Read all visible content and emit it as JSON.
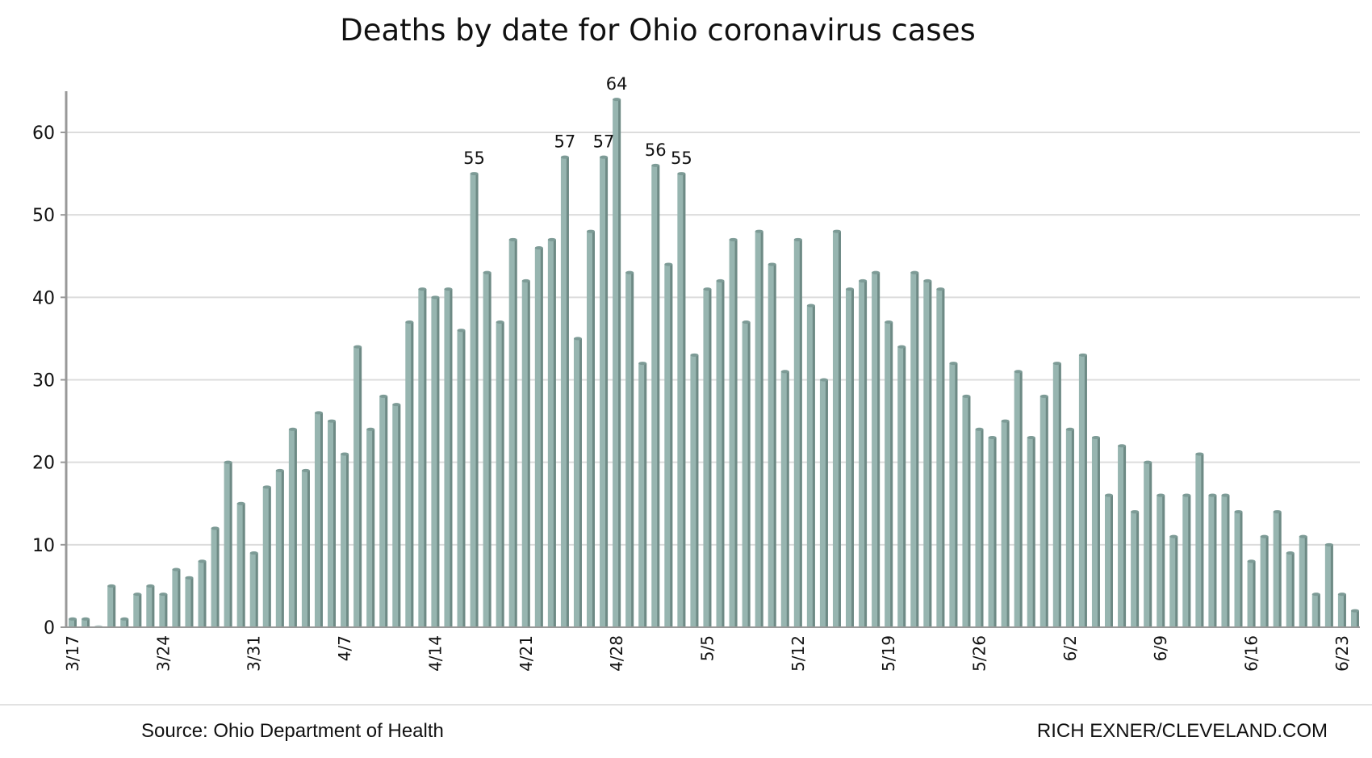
{
  "chart_data": {
    "type": "bar",
    "title": "Deaths by date for Ohio coronavirus cases",
    "xlabel": "",
    "ylabel": "",
    "ylim": [
      0,
      65
    ],
    "yticks": [
      0,
      10,
      20,
      30,
      40,
      50,
      60
    ],
    "grid": true,
    "legend": "none",
    "bar_color": "#97b5b0",
    "start_date": "3/17",
    "xtick_labels": [
      {
        "index": 0,
        "label": "3/17"
      },
      {
        "index": 7,
        "label": "3/24"
      },
      {
        "index": 14,
        "label": "3/31"
      },
      {
        "index": 21,
        "label": "4/7"
      },
      {
        "index": 28,
        "label": "4/14"
      },
      {
        "index": 35,
        "label": "4/21"
      },
      {
        "index": 42,
        "label": "4/28"
      },
      {
        "index": 49,
        "label": "5/5"
      },
      {
        "index": 56,
        "label": "5/12"
      },
      {
        "index": 63,
        "label": "5/19"
      },
      {
        "index": 70,
        "label": "5/26"
      },
      {
        "index": 77,
        "label": "6/2"
      },
      {
        "index": 84,
        "label": "6/9"
      },
      {
        "index": 91,
        "label": "6/16"
      },
      {
        "index": 98,
        "label": "6/23"
      }
    ],
    "values": [
      1,
      1,
      0,
      5,
      1,
      4,
      5,
      4,
      7,
      6,
      8,
      12,
      20,
      15,
      9,
      17,
      19,
      24,
      19,
      26,
      25,
      21,
      34,
      24,
      28,
      27,
      37,
      41,
      40,
      41,
      36,
      55,
      43,
      37,
      47,
      42,
      46,
      47,
      57,
      35,
      48,
      57,
      64,
      43,
      32,
      56,
      44,
      55,
      33,
      41,
      42,
      47,
      37,
      48,
      44,
      31,
      47,
      39,
      30,
      48,
      41,
      42,
      43,
      37,
      34,
      43,
      42,
      41,
      32,
      28,
      24,
      23,
      25,
      31,
      23,
      28,
      32,
      24,
      33,
      23,
      16,
      22,
      14,
      20,
      16,
      11,
      16,
      21,
      16,
      16,
      14,
      8,
      11,
      14,
      9,
      11,
      4,
      10,
      4,
      2
    ],
    "annotations": [
      {
        "index": 31,
        "label": "55"
      },
      {
        "index": 38,
        "label": "57"
      },
      {
        "index": 41,
        "label": "57"
      },
      {
        "index": 42,
        "label": "64"
      },
      {
        "index": 45,
        "label": "56"
      },
      {
        "index": 47,
        "label": "55"
      }
    ]
  },
  "footer": {
    "source": "Source: Ohio Department of Health",
    "credit": "RICH EXNER/CLEVELAND.COM"
  }
}
